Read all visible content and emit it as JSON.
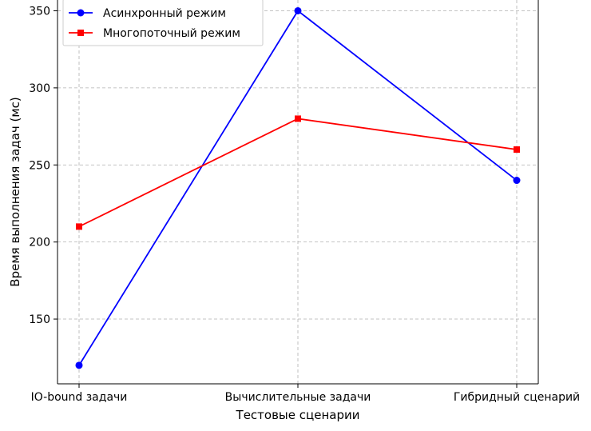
{
  "chart_data": {
    "type": "line",
    "categories": [
      "IO-bound задачи",
      "Вычислительные задачи",
      "Гибридный сценарий"
    ],
    "series": [
      {
        "name": "Асинхронный режим",
        "values": [
          120,
          350,
          240
        ],
        "color": "#0000ff",
        "marker": "circle"
      },
      {
        "name": "Многопоточный режим",
        "values": [
          210,
          280,
          260
        ],
        "color": "#ff0000",
        "marker": "square"
      }
    ],
    "xlabel": "Тестовые сценарии",
    "ylabel": "Время выполнения задач (мс)",
    "ylim": [
      108,
      357
    ],
    "yticks": [
      150,
      200,
      250,
      300,
      350
    ],
    "grid": true,
    "grid_style": "dashed",
    "legend_position": "top-left"
  }
}
